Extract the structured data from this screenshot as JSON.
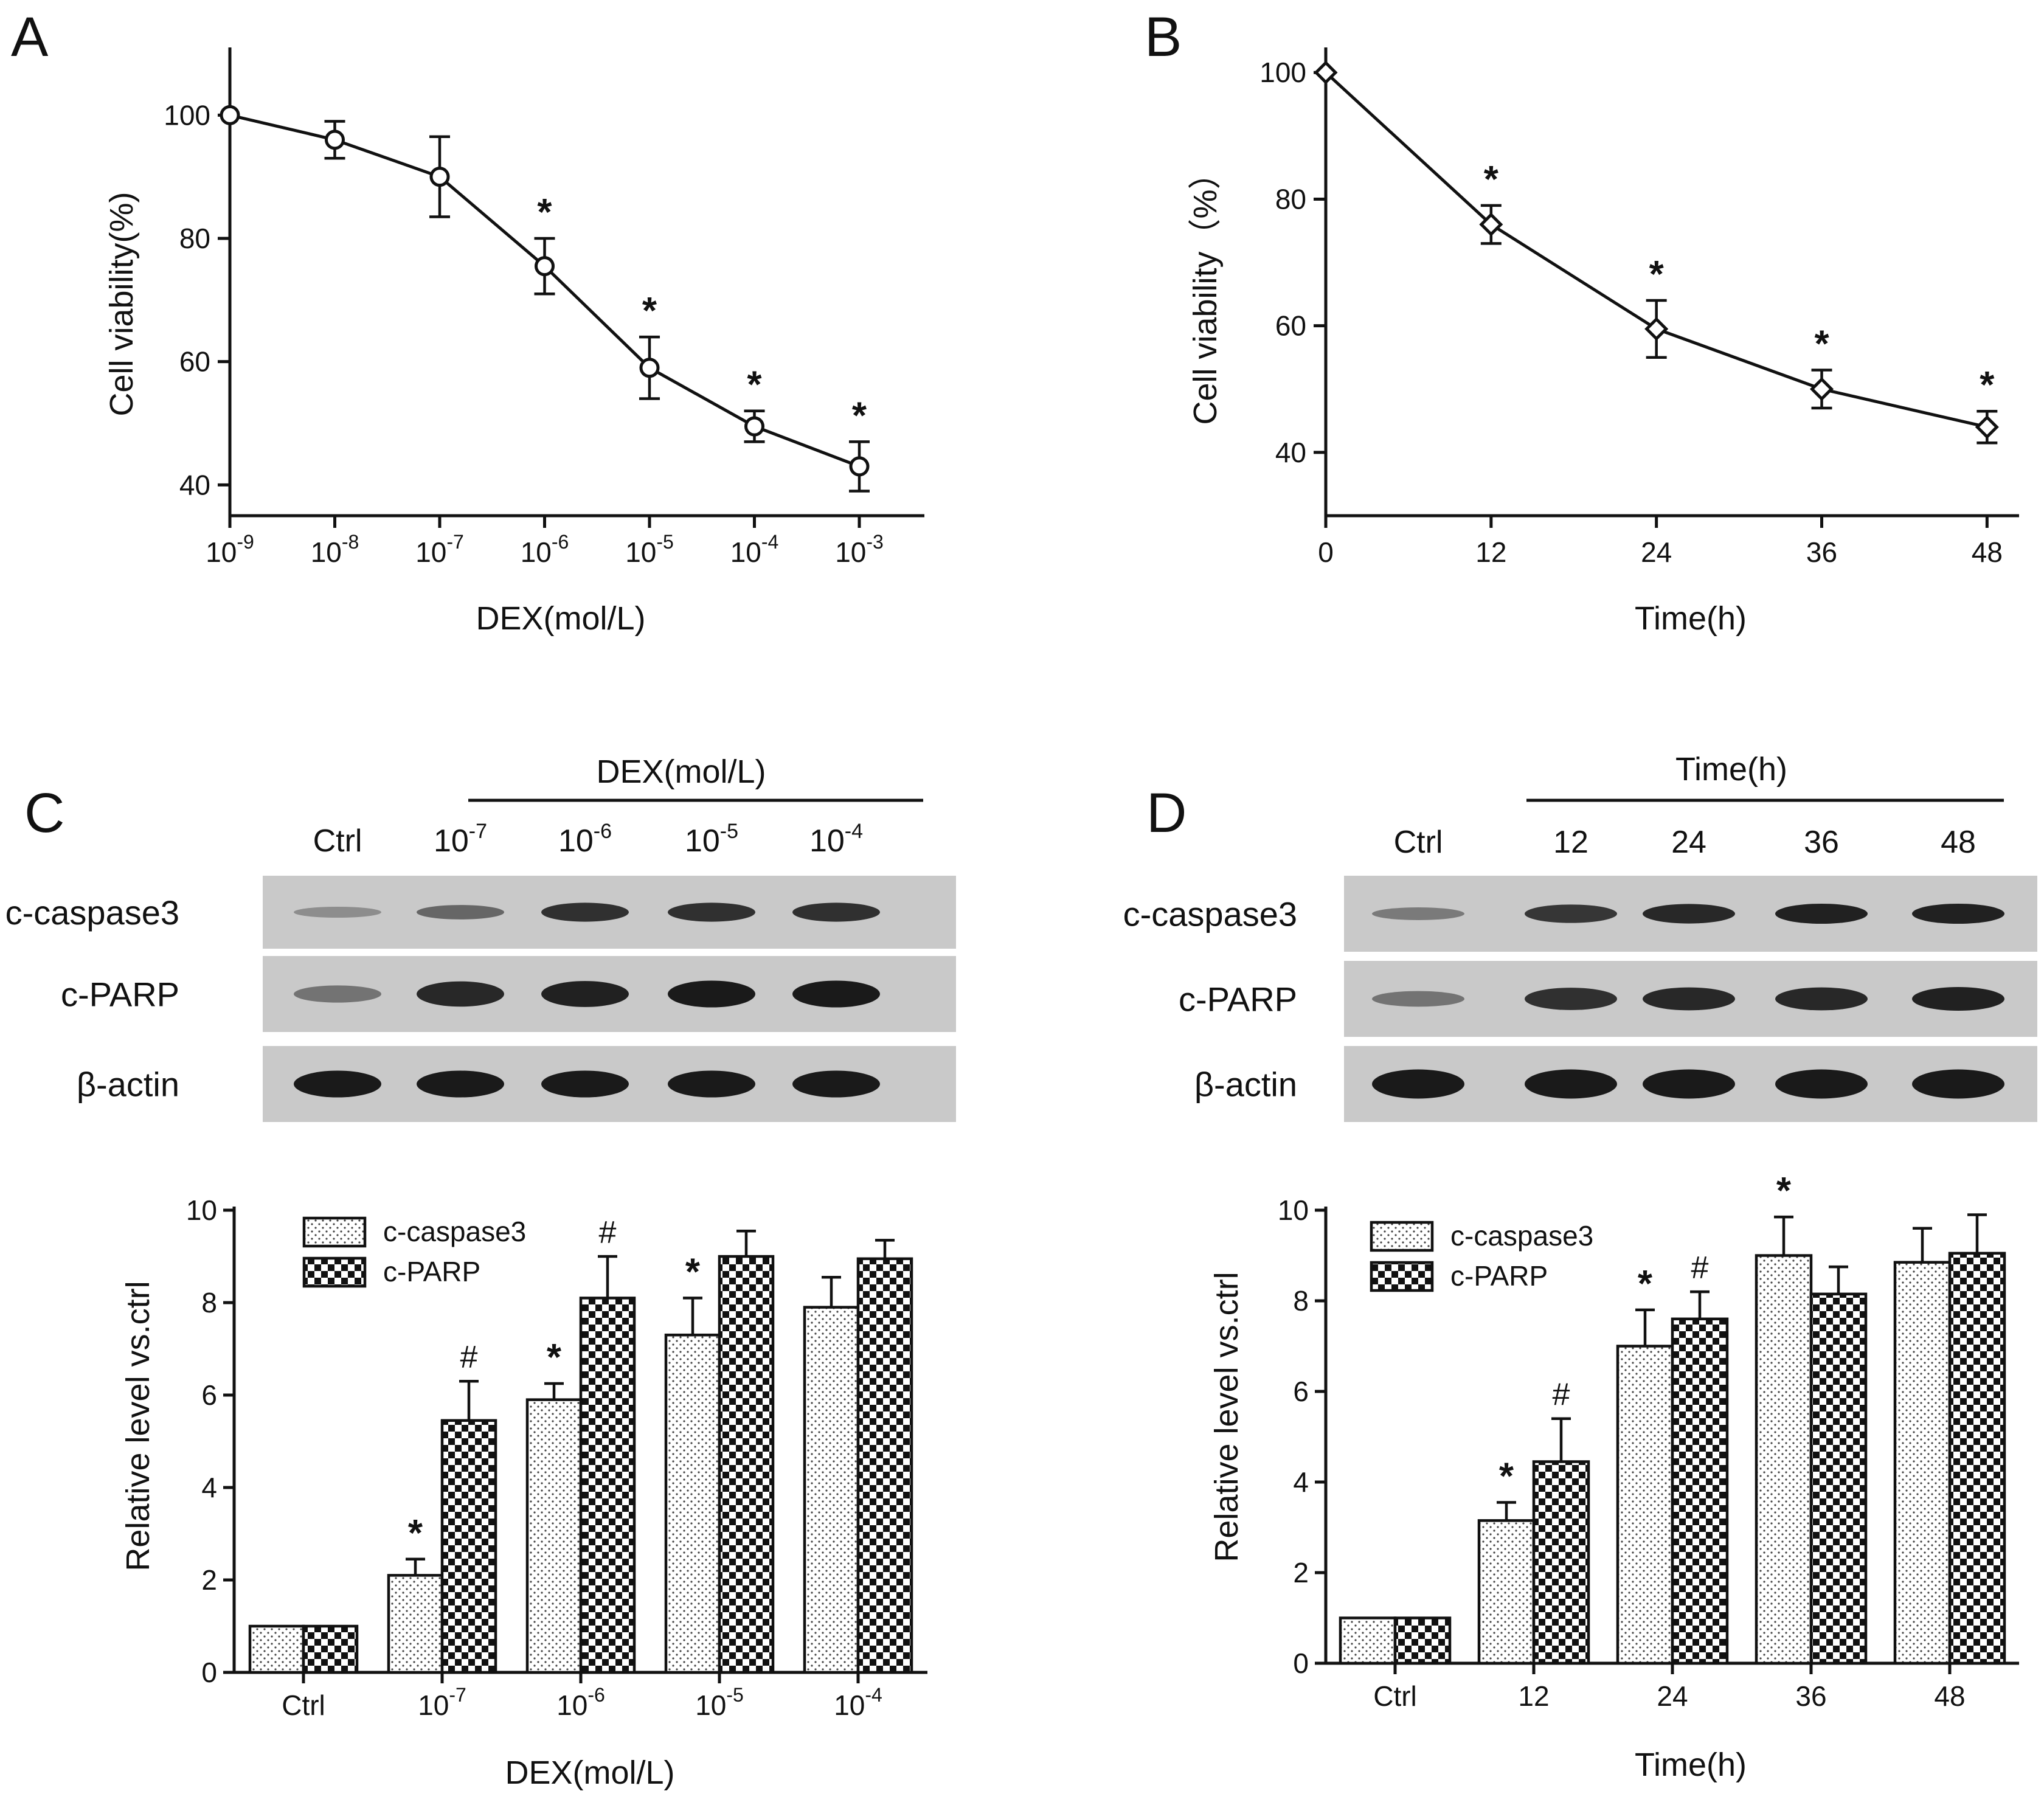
{
  "panels": {
    "A": {
      "letter": "A",
      "xlabel": "DEX(mol/L)",
      "ylabel": "Cell viability(%)",
      "x_ticks": [
        {
          "base": "10",
          "exp": "-9"
        },
        {
          "base": "10",
          "exp": "-8"
        },
        {
          "base": "10",
          "exp": "-7"
        },
        {
          "base": "10",
          "exp": "-6"
        },
        {
          "base": "10",
          "exp": "-5"
        },
        {
          "base": "10",
          "exp": "-4"
        },
        {
          "base": "10",
          "exp": "-3"
        }
      ],
      "y_ticks": [
        "40",
        "60",
        "80",
        "100"
      ]
    },
    "B": {
      "letter": "B",
      "xlabel": "Time(h)",
      "ylabel": "Cell viability（%）",
      "x_ticks": [
        "0",
        "12",
        "24",
        "36",
        "48"
      ],
      "y_ticks": [
        "40",
        "60",
        "80",
        "100"
      ]
    },
    "C": {
      "letter": "C",
      "blot_header": "DEX(mol/L)",
      "blot_lanes": [
        {
          "base": "Ctrl",
          "exp": ""
        },
        {
          "base": "10",
          "exp": "-7"
        },
        {
          "base": "10",
          "exp": "-6"
        },
        {
          "base": "10",
          "exp": "-5"
        },
        {
          "base": "10",
          "exp": "-4"
        }
      ],
      "blot_rows": [
        "c-caspase3",
        "c-PARP",
        "β-actin"
      ],
      "xlabel": "DEX(mol/L)",
      "ylabel": "Relative  level  vs.ctrl",
      "x_ticks": [
        {
          "base": "Ctrl",
          "exp": ""
        },
        {
          "base": "10",
          "exp": "-7"
        },
        {
          "base": "10",
          "exp": "-6"
        },
        {
          "base": "10",
          "exp": "-5"
        },
        {
          "base": "10",
          "exp": "-4"
        }
      ],
      "y_ticks": [
        "0",
        "2",
        "4",
        "6",
        "8",
        "10"
      ],
      "legend": [
        "c-caspase3",
        "c-PARP"
      ]
    },
    "D": {
      "letter": "D",
      "blot_header": "Time(h)",
      "blot_lanes": [
        "Ctrl",
        "12",
        "24",
        "36",
        "48"
      ],
      "blot_rows": [
        "c-caspase3",
        "c-PARP",
        "β-actin"
      ],
      "xlabel": "Time(h)",
      "ylabel": "Relative  level  vs.ctrl",
      "x_ticks": [
        "Ctrl",
        "12",
        "24",
        "36",
        "48"
      ],
      "y_ticks": [
        "0",
        "2",
        "4",
        "6",
        "8",
        "10"
      ],
      "legend": [
        "c-caspase3",
        "c-PARP"
      ]
    }
  },
  "colors": {
    "ink": "#111111",
    "blot_background": "#c9c9c9",
    "band": "#1a1a1a",
    "background": "#ffffff"
  },
  "chart_data": [
    {
      "id": "A",
      "type": "line",
      "title": "",
      "xlabel": "DEX(mol/L)",
      "ylabel": "Cell viability(%)",
      "x_scale": "log10",
      "x": [
        "1e-9",
        "1e-8",
        "1e-7",
        "1e-6",
        "1e-5",
        "1e-4",
        "1e-3"
      ],
      "values": [
        100,
        96,
        90,
        75.5,
        59,
        49.5,
        43
      ],
      "errors": [
        0,
        3,
        6.5,
        4.5,
        5,
        2.5,
        4
      ],
      "significance": [
        "",
        "",
        "",
        "*",
        "*",
        "*",
        "*"
      ],
      "marker": "circle",
      "ylim": [
        35,
        110
      ],
      "y_tick_values": [
        40,
        60,
        80,
        100
      ]
    },
    {
      "id": "B",
      "type": "line",
      "title": "",
      "xlabel": "Time(h)",
      "ylabel": "Cell viability（%）",
      "x": [
        0,
        12,
        24,
        36,
        48
      ],
      "values": [
        100,
        76,
        59.5,
        50,
        44
      ],
      "errors": [
        0,
        3,
        4.5,
        3,
        2.5
      ],
      "significance": [
        "",
        "*",
        "*",
        "*",
        "*"
      ],
      "marker": "diamond",
      "xlim": [
        0,
        49
      ],
      "ylim": [
        30,
        103
      ],
      "y_tick_values": [
        40,
        60,
        80,
        100
      ]
    },
    {
      "id": "C",
      "type": "bar",
      "title": "",
      "xlabel": "DEX(mol/L)",
      "ylabel": "Relative  level  vs.ctrl",
      "categories": [
        "Ctrl",
        "10-7",
        "10-6",
        "10-5",
        "10-4"
      ],
      "series": [
        {
          "name": "c-caspase3",
          "values": [
            1,
            2.1,
            5.9,
            7.3,
            7.9
          ],
          "errors": [
            0,
            0.35,
            0.35,
            0.8,
            0.65
          ],
          "significance": [
            "",
            "*",
            "*",
            "*",
            ""
          ],
          "pattern": "dots"
        },
        {
          "name": "c-PARP",
          "values": [
            1,
            5.45,
            8.1,
            9.0,
            8.95
          ],
          "errors": [
            0,
            0.85,
            0.9,
            0.55,
            0.4
          ],
          "significance": [
            "",
            "#",
            "#",
            "",
            ""
          ],
          "pattern": "checker"
        }
      ],
      "ylim": [
        0,
        10
      ],
      "y_tick_values": [
        0,
        2,
        4,
        6,
        8,
        10
      ],
      "legend_position": "top-left"
    },
    {
      "id": "D",
      "type": "bar",
      "title": "",
      "xlabel": "Time(h)",
      "ylabel": "Relative  level  vs.ctrl",
      "categories": [
        "Ctrl",
        "12",
        "24",
        "36",
        "48"
      ],
      "series": [
        {
          "name": "c-caspase3",
          "values": [
            1,
            3.15,
            7.0,
            9.0,
            8.85
          ],
          "errors": [
            0,
            0.4,
            0.8,
            0.85,
            0.75
          ],
          "significance": [
            "",
            "*",
            "*",
            "*",
            ""
          ],
          "pattern": "dots"
        },
        {
          "name": "c-PARP",
          "values": [
            1,
            4.45,
            7.6,
            8.15,
            9.05
          ],
          "errors": [
            0,
            0.95,
            0.6,
            0.6,
            0.85
          ],
          "significance": [
            "",
            "#",
            "#",
            "",
            ""
          ],
          "pattern": "checker"
        }
      ],
      "ylim": [
        0,
        10
      ],
      "y_tick_values": [
        0,
        2,
        4,
        6,
        8,
        10
      ],
      "legend_position": "top-left"
    }
  ]
}
